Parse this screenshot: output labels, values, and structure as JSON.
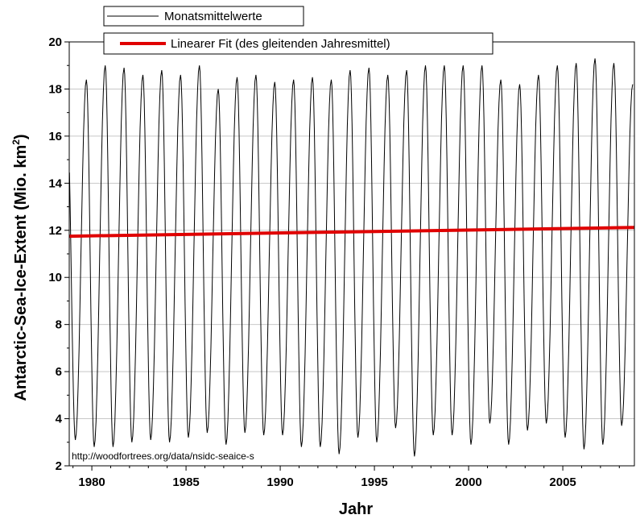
{
  "chart_data": {
    "type": "line",
    "xlabel": "Jahr",
    "ylabel_main": "Antarctic-Sea-Ice-Extent (Mio. km",
    "ylabel_sup": "2",
    "ylabel_close": ")",
    "xlim": [
      1978.8,
      2008.8
    ],
    "ylim": [
      2,
      20
    ],
    "xticks": [
      1980,
      1985,
      1990,
      1995,
      2000,
      2005
    ],
    "yticks": [
      2,
      4,
      6,
      8,
      10,
      12,
      14,
      16,
      18,
      20
    ],
    "grid": true,
    "legend_position": "top-center",
    "annotation": "http://woodfortrees.org/data/nsidc-seaice-s",
    "series": [
      {
        "name": "Monatsmittelwerte",
        "color": "#000000",
        "seasonal_minimum_month": 2,
        "seasonal_maximum_month": 9,
        "annual_extremes": [
          {
            "year": 1978,
            "max": 16.4,
            "min": 3.1
          },
          {
            "year": 1979,
            "max": 18.4,
            "min": 3.1
          },
          {
            "year": 1980,
            "max": 19.0,
            "min": 2.8
          },
          {
            "year": 1981,
            "max": 18.9,
            "min": 2.8
          },
          {
            "year": 1982,
            "max": 18.6,
            "min": 3.0
          },
          {
            "year": 1983,
            "max": 18.8,
            "min": 3.1
          },
          {
            "year": 1984,
            "max": 18.6,
            "min": 3.0
          },
          {
            "year": 1985,
            "max": 19.0,
            "min": 3.2
          },
          {
            "year": 1986,
            "max": 18.0,
            "min": 3.4
          },
          {
            "year": 1987,
            "max": 18.5,
            "min": 2.9
          },
          {
            "year": 1988,
            "max": 18.6,
            "min": 3.4
          },
          {
            "year": 1989,
            "max": 18.3,
            "min": 3.3
          },
          {
            "year": 1990,
            "max": 18.4,
            "min": 3.3
          },
          {
            "year": 1991,
            "max": 18.5,
            "min": 2.8
          },
          {
            "year": 1992,
            "max": 18.4,
            "min": 2.8
          },
          {
            "year": 1993,
            "max": 18.8,
            "min": 2.5
          },
          {
            "year": 1994,
            "max": 18.9,
            "min": 3.2
          },
          {
            "year": 1995,
            "max": 18.6,
            "min": 3.0
          },
          {
            "year": 1996,
            "max": 18.8,
            "min": 3.6
          },
          {
            "year": 1997,
            "max": 19.0,
            "min": 2.4
          },
          {
            "year": 1998,
            "max": 19.0,
            "min": 3.3
          },
          {
            "year": 1999,
            "max": 19.0,
            "min": 3.3
          },
          {
            "year": 2000,
            "max": 19.0,
            "min": 2.9
          },
          {
            "year": 2001,
            "max": 18.4,
            "min": 3.8
          },
          {
            "year": 2002,
            "max": 18.2,
            "min": 2.9
          },
          {
            "year": 2003,
            "max": 18.6,
            "min": 3.5
          },
          {
            "year": 2004,
            "max": 19.0,
            "min": 3.8
          },
          {
            "year": 2005,
            "max": 19.1,
            "min": 3.2
          },
          {
            "year": 2006,
            "max": 19.3,
            "min": 2.7
          },
          {
            "year": 2007,
            "max": 19.1,
            "min": 2.9
          },
          {
            "year": 2008,
            "max": 18.2,
            "min": 3.7
          }
        ]
      },
      {
        "name": "Linearer Fit (des gleitenden Jahresmittel)",
        "color": "#e00000",
        "x": [
          1978.8,
          2008.8
        ],
        "y": [
          11.75,
          12.12
        ]
      }
    ]
  }
}
